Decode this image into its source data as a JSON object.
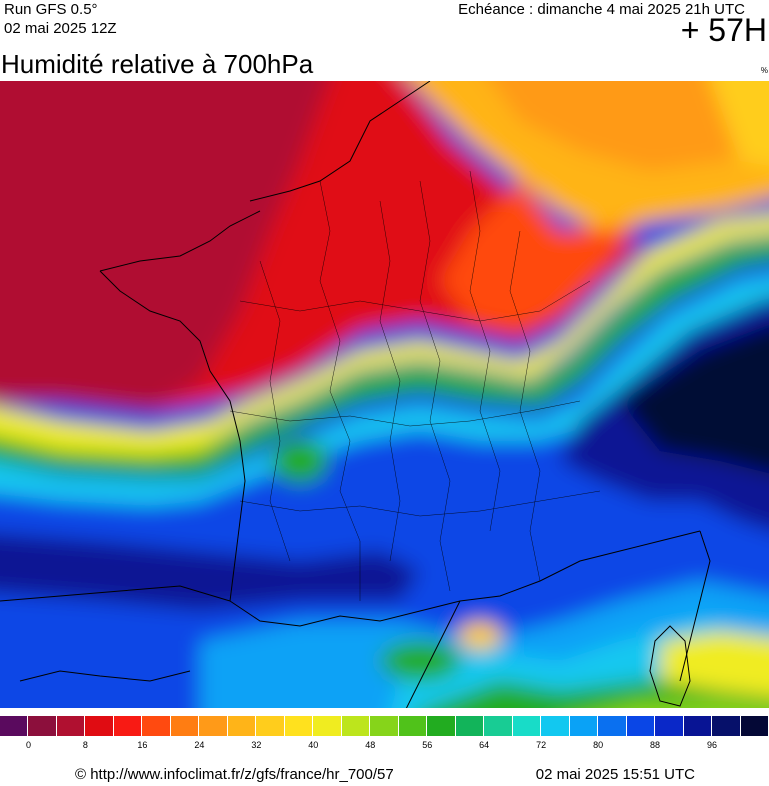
{
  "header": {
    "run": "Run GFS 0.5°",
    "run_date": "02 mai 2025 12Z",
    "forecast": "Echéance : dimanche 4 mai 2025 21h UTC",
    "lead": "+ 57H"
  },
  "title": "Humidité relative à 700hPa",
  "unit": "%",
  "legend": {
    "colors": [
      "#5a0a5e",
      "#8c0f3c",
      "#b01030",
      "#e00c12",
      "#f81a14",
      "#ff4a10",
      "#ff7d12",
      "#ff9a18",
      "#ffb418",
      "#ffcd1c",
      "#ffe11e",
      "#f0ec20",
      "#bde51c",
      "#86d41a",
      "#50c21a",
      "#22ac20",
      "#12b45a",
      "#18cc94",
      "#18dcc8",
      "#12c8f0",
      "#0aa2f6",
      "#0a70f0",
      "#0a46e6",
      "#0a28c8",
      "#081494",
      "#06106a",
      "#040836"
    ],
    "ticks": [
      "0",
      "8",
      "16",
      "24",
      "32",
      "40",
      "48",
      "56",
      "64",
      "72",
      "80",
      "88",
      "96"
    ]
  },
  "footer": {
    "source": "© http://www.infoclimat.fr/z/gfs/france/hr_700/57",
    "generated": "02 mai 2025 15:51 UTC"
  }
}
